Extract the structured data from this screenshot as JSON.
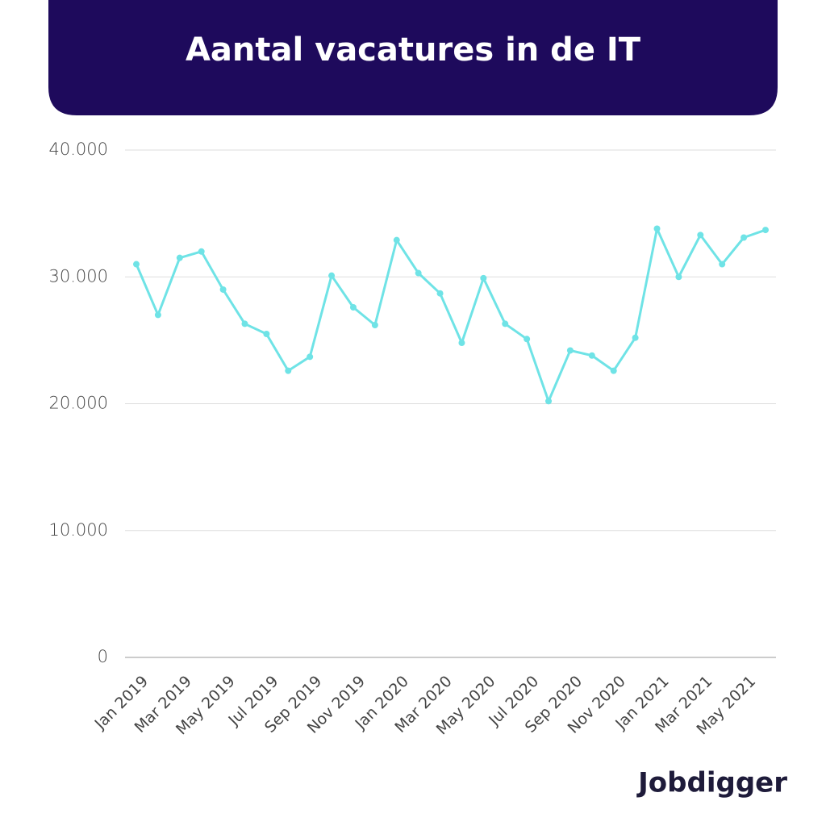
{
  "chart_data": {
    "type": "line",
    "title": "Aantal vacatures in de IT",
    "logo": "Jobdigger",
    "categories": [
      "Jan 2019",
      null,
      "Mar 2019",
      null,
      "May 2019",
      null,
      "Jul 2019",
      null,
      "Sep 2019",
      null,
      "Nov 2019",
      null,
      "Jan 2020",
      null,
      "Mar 2020",
      null,
      "May 2020",
      null,
      "Jul 2020",
      null,
      "Sep 2020",
      null,
      "Nov 2020",
      null,
      "Jan 2021",
      null,
      "Mar 2021",
      null,
      "May 2021",
      null
    ],
    "series": [
      {
        "color": "#6fe3e6",
        "values": [
          31000,
          27000,
          31500,
          32000,
          29000,
          26300,
          25500,
          22600,
          23700,
          30100,
          27600,
          26200,
          32900,
          30300,
          28700,
          24800,
          29900,
          26300,
          25100,
          20200,
          24200,
          23800,
          22600,
          25200,
          33800,
          30000,
          33300,
          31000,
          33100,
          33700
        ]
      }
    ],
    "ylim": [
      0,
      40000
    ],
    "yticks": [
      0,
      {
        "value": 10000,
        "label": "10.000"
      },
      {
        "value": 20000,
        "label": "20.000"
      },
      {
        "value": 30000,
        "label": "30.000"
      },
      {
        "value": 40000,
        "label": "40.000"
      }
    ],
    "grid": true
  }
}
